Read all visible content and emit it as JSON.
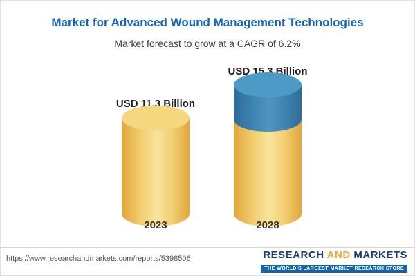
{
  "chart_data": {
    "type": "bar",
    "variant": "3d-cylinder",
    "title": "Market for Advanced Wound Management Technologies",
    "subtitle": "Market forecast to grow at a CAGR of 6.2%",
    "cagr_pct": 6.2,
    "unit": "USD Billion",
    "categories": [
      "2023",
      "2028"
    ],
    "values": [
      11.3,
      15.3
    ],
    "value_labels": [
      "USD 11.3 Billion",
      "USD 15.3 Billion"
    ],
    "ylim": [
      0,
      16
    ],
    "grid": false,
    "legend": false,
    "colors": {
      "base_segment": "#f0c75e",
      "growth_segment": "#3f83b1",
      "title": "#1565b8"
    }
  },
  "footer": {
    "url": "https://www.researchandmarkets.com/reports/5398506",
    "logo": {
      "research": "RESEARCH",
      "and": "AND",
      "markets": "MARKETS",
      "tagline": "THE WORLD'S LARGEST MARKET RESEARCH STORE"
    }
  }
}
